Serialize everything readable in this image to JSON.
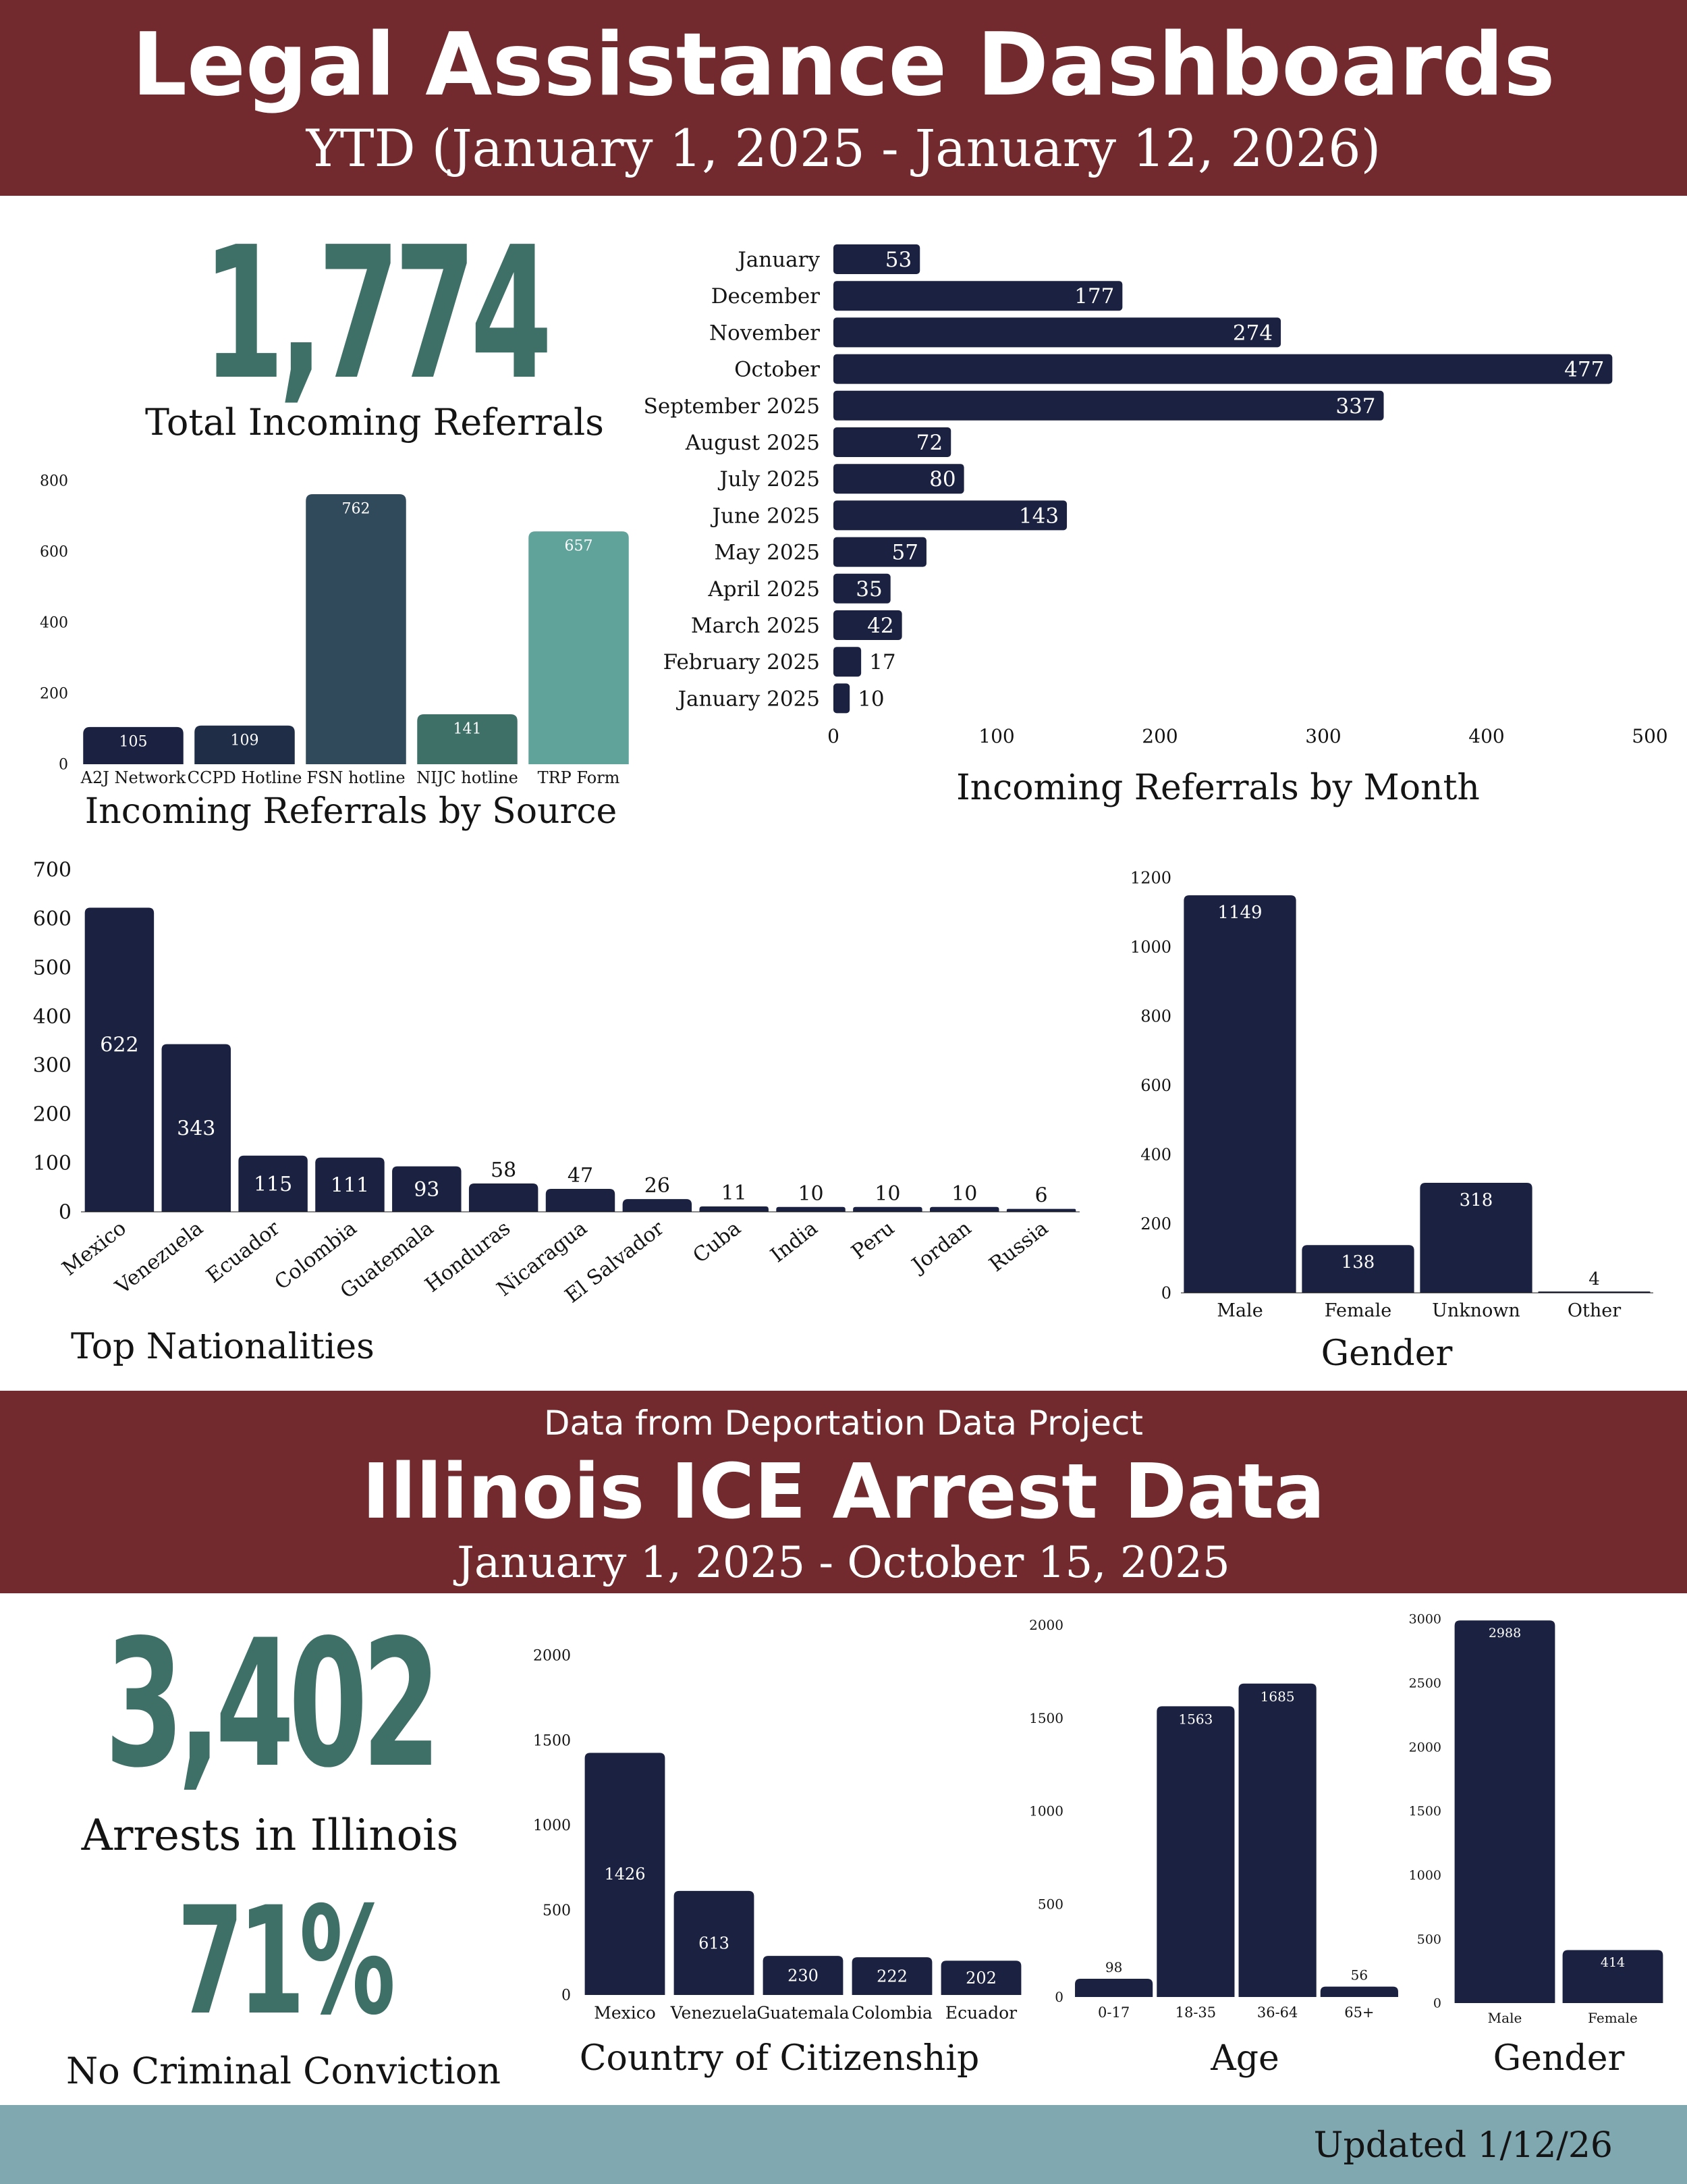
{
  "header": {
    "title": "Legal Assistance Dashboards",
    "subtitle": "YTD (January 1, 2025 - January 12, 2026)"
  },
  "total_referrals": {
    "value": "1,774",
    "label": "Total Incoming Referrals"
  },
  "section2": {
    "source_note": "Data from Deportation Data Project",
    "title": "Illinois ICE Arrest Data",
    "subtitle": "January 1, 2025 - October 15, 2025"
  },
  "arrests": {
    "value": "3,402",
    "label": "Arrests in Illinois"
  },
  "no_conviction": {
    "value": "71%",
    "label": "No Criminal Conviction"
  },
  "footer": {
    "updated": "Updated 1/12/26"
  },
  "colors": {
    "brand": "#732a2e",
    "navy": "#1b2140",
    "teal": "#3f7068",
    "footer": "#7fa8b1"
  },
  "chart_data": [
    {
      "id": "referrals_by_source",
      "type": "bar",
      "title": "Incoming Referrals by Source",
      "categories": [
        "A2J Network",
        "CCPD Hotline",
        "FSN hotline",
        "NIJC hotline",
        "TRP Form"
      ],
      "values": [
        105,
        109,
        762,
        141,
        657
      ],
      "colors": [
        "#1b2140",
        "#1f2d47",
        "#314a5b",
        "#3f7068",
        "#5fa39b"
      ],
      "yticks": [
        0,
        200,
        400,
        600,
        800
      ],
      "ylim": [
        0,
        800
      ]
    },
    {
      "id": "referrals_by_month",
      "type": "bar",
      "orientation": "horizontal",
      "title": "Incoming Referrals by Month",
      "categories": [
        "January",
        "December",
        "November",
        "October",
        "September 2025",
        "August 2025",
        "July 2025",
        "June 2025",
        "May 2025",
        "April 2025",
        "March 2025",
        "February 2025",
        "January 2025"
      ],
      "values": [
        53,
        177,
        274,
        477,
        337,
        72,
        80,
        143,
        57,
        35,
        42,
        17,
        10
      ],
      "xticks": [
        0,
        100,
        200,
        300,
        400,
        500
      ],
      "xlim": [
        0,
        500
      ]
    },
    {
      "id": "top_nationalities",
      "type": "bar",
      "title": "Top Nationalities",
      "categories": [
        "Mexico",
        "Venezuela",
        "Ecuador",
        "Colombia",
        "Guatemala",
        "Honduras",
        "Nicaragua",
        "El Salvador",
        "Cuba",
        "India",
        "Peru",
        "Jordan",
        "Russia"
      ],
      "values": [
        622,
        343,
        115,
        111,
        93,
        58,
        47,
        26,
        11,
        10,
        10,
        10,
        6
      ],
      "yticks": [
        0,
        100,
        200,
        300,
        400,
        500,
        600,
        700
      ],
      "ylim": [
        0,
        700
      ]
    },
    {
      "id": "referral_gender",
      "type": "bar",
      "title": "Gender",
      "categories": [
        "Male",
        "Female",
        "Unknown",
        "Other"
      ],
      "values": [
        1149,
        138,
        318,
        4
      ],
      "yticks": [
        0,
        200,
        400,
        600,
        800,
        1000,
        1200
      ],
      "ylim": [
        0,
        1200
      ]
    },
    {
      "id": "country_of_citizenship",
      "type": "bar",
      "title": "Country of Citizenship",
      "categories": [
        "Mexico",
        "Venezuela",
        "Guatemala",
        "Colombia",
        "Ecuador"
      ],
      "values": [
        1426,
        613,
        230,
        222,
        202
      ],
      "yticks": [
        0,
        500,
        1000,
        1500,
        2000
      ],
      "ylim": [
        0,
        2000
      ]
    },
    {
      "id": "arrest_age",
      "type": "bar",
      "title": "Age",
      "categories": [
        "0-17",
        "18-35",
        "36-64",
        "65+"
      ],
      "values": [
        98,
        1563,
        1685,
        56
      ],
      "yticks": [
        0,
        500,
        1000,
        1500,
        2000
      ],
      "ylim": [
        0,
        2000
      ]
    },
    {
      "id": "arrest_gender",
      "type": "bar",
      "title": "Gender",
      "categories": [
        "Male",
        "Female"
      ],
      "values": [
        2988,
        414
      ],
      "yticks": [
        0,
        500,
        1000,
        1500,
        2000,
        2500,
        3000
      ],
      "ylim": [
        0,
        3000
      ]
    }
  ]
}
